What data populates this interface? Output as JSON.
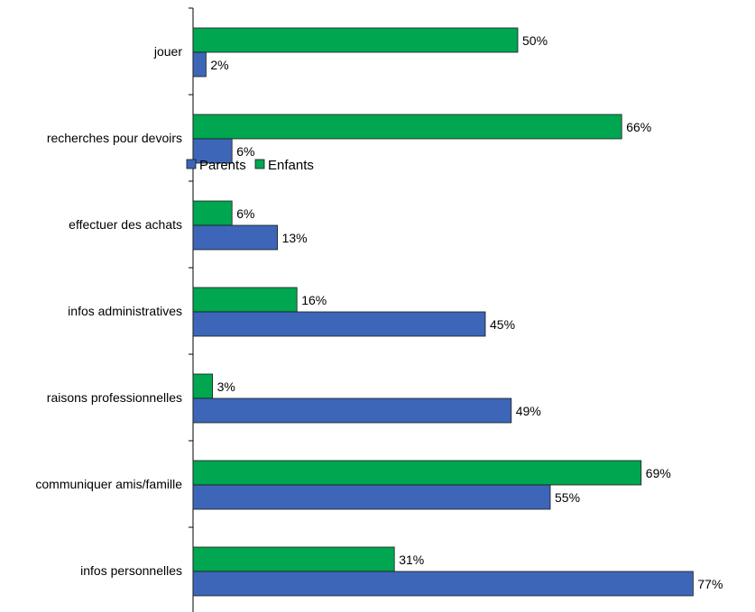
{
  "chart_data": {
    "type": "bar",
    "orientation": "horizontal",
    "title": "",
    "xlabel": "",
    "ylabel": "",
    "categories": [
      "jouer",
      "recherches pour devoirs",
      "effectuer des achats",
      "infos administratives",
      "raisons professionnelles",
      "communiquer amis/famille",
      "infos personnelles"
    ],
    "series": [
      {
        "name": "Enfants",
        "color": "#00a650",
        "values": [
          50,
          66,
          6,
          16,
          3,
          69,
          31
        ],
        "labels": [
          "50%",
          "66%",
          "6%",
          "16%",
          "3%",
          "69%",
          "31%"
        ]
      },
      {
        "name": "Parents",
        "color": "#3d66b8",
        "values": [
          2,
          6,
          13,
          45,
          49,
          55,
          77
        ],
        "labels": [
          "2%",
          "6%",
          "13%",
          "45%",
          "49%",
          "55%",
          "77%"
        ]
      }
    ],
    "xlim": [
      0,
      100
    ],
    "grid": false,
    "legend_position": "right",
    "legend": [
      {
        "name": "Parents",
        "color": "#3d66b8"
      },
      {
        "name": "Enfants",
        "color": "#00a650"
      }
    ]
  }
}
